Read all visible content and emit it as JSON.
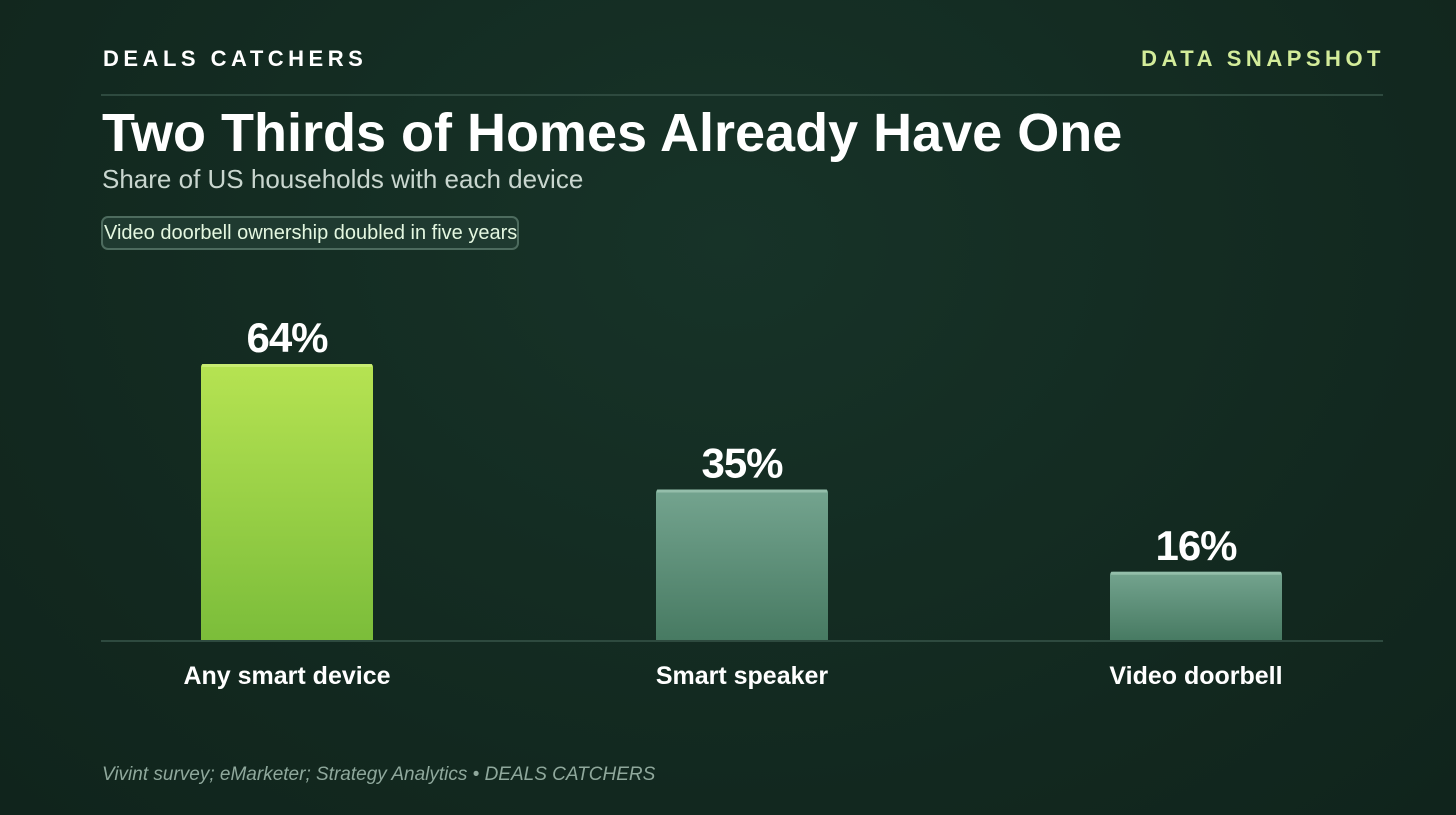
{
  "header": {
    "brand": "DEALS CATCHERS",
    "tag": "DATA SNAPSHOT"
  },
  "title": "Two Thirds of Homes Already Have One",
  "subtitle": "Share of US households with each device",
  "callout": "Video doorbell ownership doubled in five years",
  "footer": "Vivint survey; eMarketer; Strategy Analytics • DEALS CATCHERS",
  "colors": {
    "background": "#132a22",
    "highlight_bar_top": "#b6e352",
    "highlight_bar_bottom": "#7bbd3a",
    "muted_bar_top": "#74a48f",
    "muted_bar_bottom": "#477a62",
    "accent_text": "#d3ec9a"
  },
  "chart_data": {
    "type": "bar",
    "categories": [
      "Any smart device",
      "Smart speaker",
      "Video doorbell"
    ],
    "values": [
      64,
      35,
      16
    ],
    "value_labels": [
      "64%",
      "35%",
      "16%"
    ],
    "unit": "%",
    "highlight_index": 0,
    "ylim": [
      0,
      64
    ],
    "grid": false,
    "legend": "none"
  }
}
